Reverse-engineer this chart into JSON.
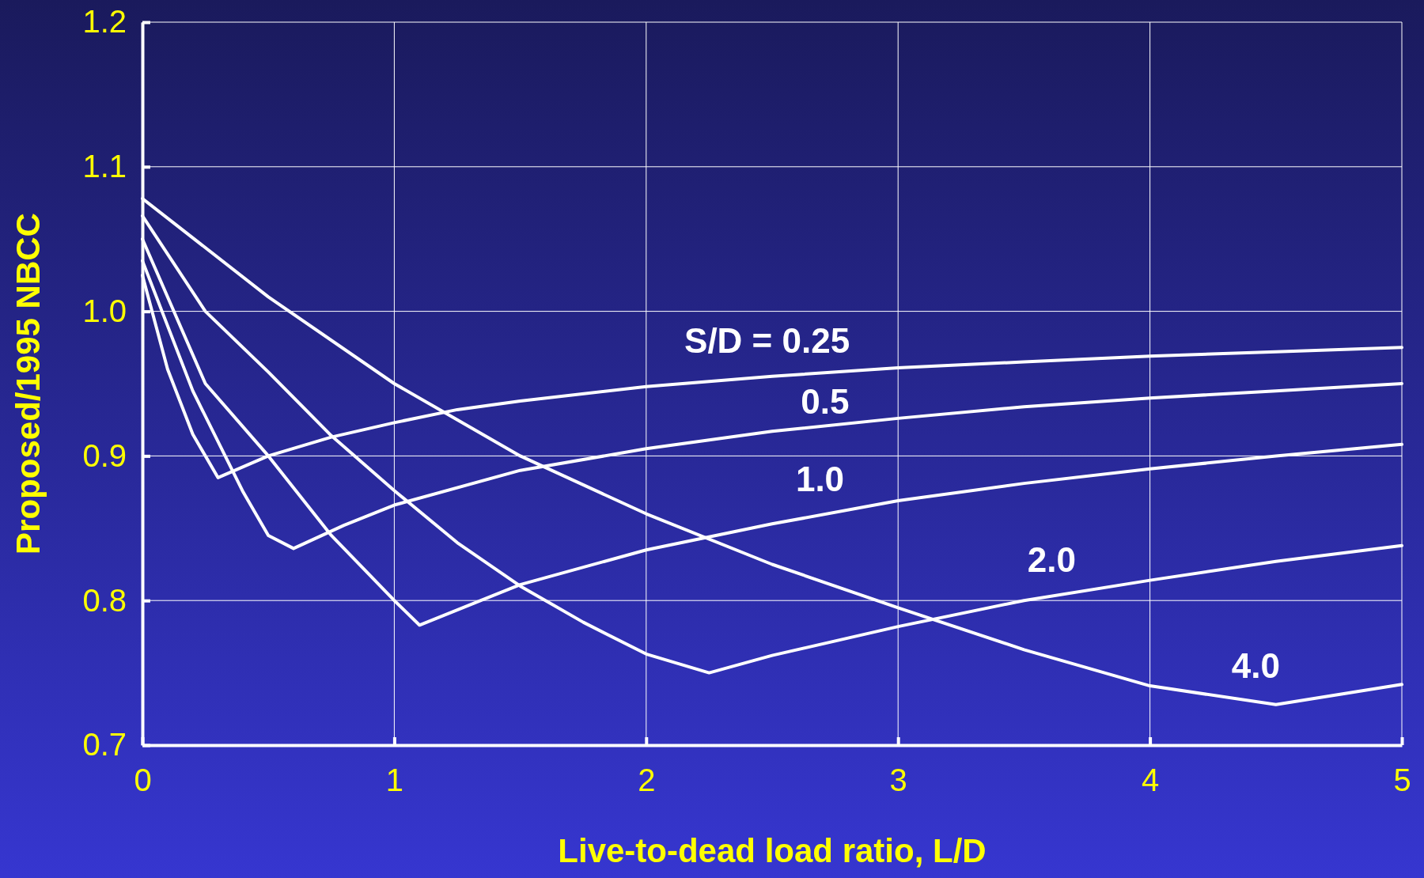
{
  "chart_data": {
    "type": "line",
    "xlabel": "Live-to-dead load ratio, L/D",
    "ylabel": "Proposed/1995 NBCC",
    "xlim": [
      0,
      5
    ],
    "ylim": [
      0.7,
      1.2
    ],
    "xticks": [
      0,
      1,
      2,
      3,
      4,
      5
    ],
    "yticks": [
      {
        "value": 0.7,
        "label": "0.7"
      },
      {
        "value": 0.8,
        "label": "0.8"
      },
      {
        "value": 0.9,
        "label": "0.9"
      },
      {
        "value": 1.0,
        "label": "1.0"
      },
      {
        "value": 1.1,
        "label": "1.1"
      },
      {
        "value": 1.2,
        "label": "1.2"
      }
    ],
    "grid": true,
    "marker": "none",
    "line_style": "solid",
    "series": [
      {
        "name": "S/D = 0.25",
        "color": "#ffffff",
        "x": [
          0,
          0.1,
          0.2,
          0.3,
          0.5,
          0.75,
          1,
          1.25,
          1.5,
          2,
          2.5,
          3,
          3.5,
          4,
          4.5,
          5
        ],
        "values": [
          1.025,
          0.96,
          0.915,
          0.885,
          0.9,
          0.913,
          0.923,
          0.932,
          0.938,
          0.948,
          0.955,
          0.961,
          0.965,
          0.969,
          0.972,
          0.975
        ]
      },
      {
        "name": "0.5",
        "color": "#ffffff",
        "x": [
          0,
          0.2,
          0.4,
          0.5,
          0.6,
          0.8,
          1,
          1.5,
          2,
          2.5,
          3,
          3.5,
          4,
          4.5,
          5
        ],
        "values": [
          1.035,
          0.945,
          0.875,
          0.845,
          0.836,
          0.852,
          0.866,
          0.89,
          0.905,
          0.917,
          0.926,
          0.934,
          0.94,
          0.945,
          0.95
        ]
      },
      {
        "name": "1.0",
        "color": "#ffffff",
        "x": [
          0,
          0.25,
          0.5,
          0.75,
          1,
          1.1,
          1.5,
          2,
          2.5,
          3,
          3.5,
          4,
          4.5,
          5
        ],
        "values": [
          1.05,
          0.95,
          0.9,
          0.845,
          0.8,
          0.783,
          0.811,
          0.835,
          0.853,
          0.869,
          0.881,
          0.891,
          0.9,
          0.908
        ]
      },
      {
        "name": "2.0",
        "color": "#ffffff",
        "x": [
          0,
          0.25,
          0.5,
          0.75,
          1,
          1.25,
          1.5,
          1.75,
          2,
          2.25,
          2.5,
          3,
          3.5,
          4,
          4.5,
          5
        ],
        "values": [
          1.066,
          1.0,
          0.958,
          0.914,
          0.876,
          0.84,
          0.81,
          0.785,
          0.763,
          0.75,
          0.762,
          0.782,
          0.8,
          0.814,
          0.827,
          0.838
        ]
      },
      {
        "name": "4.0",
        "color": "#ffffff",
        "x": [
          0,
          0.5,
          1,
          1.5,
          2,
          2.5,
          3,
          3.5,
          4,
          4.5,
          5
        ],
        "values": [
          1.078,
          1.01,
          0.95,
          0.9,
          0.86,
          0.825,
          0.795,
          0.766,
          0.741,
          0.728,
          0.742
        ]
      }
    ]
  }
}
